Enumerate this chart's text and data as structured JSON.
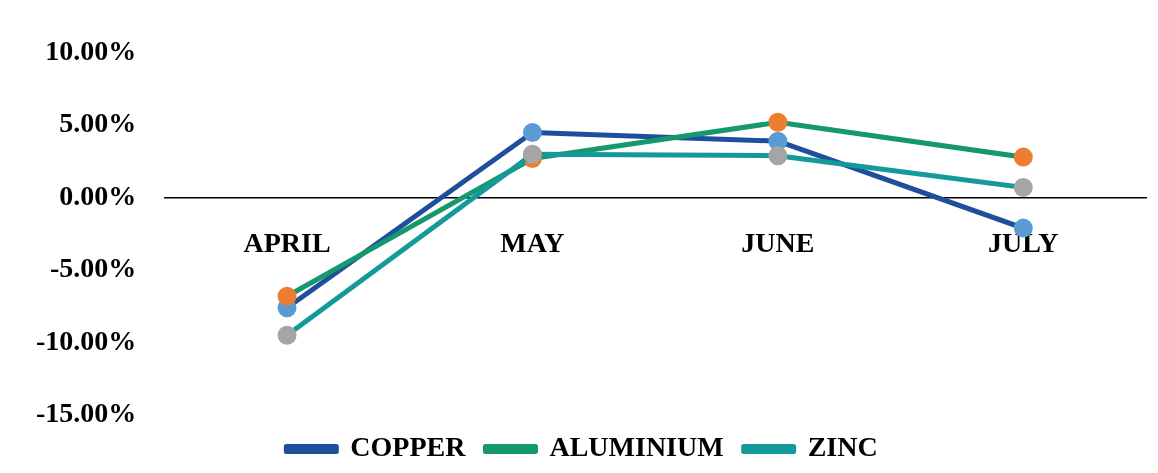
{
  "chart_data": {
    "type": "line",
    "categories": [
      "APRIL",
      "MAY",
      "JUNE",
      "JULY"
    ],
    "series": [
      {
        "name": "COPPER",
        "color": "#1f4e9c",
        "colors": [
          "#5b9bd5",
          "#5b9bd5",
          "#5b9bd5",
          "#5b9bd5"
        ],
        "values": [
          -7.6,
          4.5,
          3.9,
          -2.1
        ]
      },
      {
        "name": "ALUMINIUM",
        "color": "#16986e",
        "colors": [
          "#ed7d31",
          "#ed7d31",
          "#ed7d31",
          "#ed7d31"
        ],
        "values": [
          -6.8,
          2.7,
          5.2,
          2.8
        ]
      },
      {
        "name": "ZINC",
        "color": "#159a9c",
        "colors": [
          "#a5a5a5",
          "#a5a5a5",
          "#a5a5a5",
          "#a5a5a5"
        ],
        "values": [
          -9.5,
          3.0,
          2.9,
          0.7
        ]
      }
    ],
    "ylim": [
      -15,
      10
    ],
    "yticks": [
      {
        "value": -15,
        "label": "-15.00%"
      },
      {
        "value": -10,
        "label": "-10.00%"
      },
      {
        "value": -5,
        "label": "-5.00%"
      },
      {
        "value": 0,
        "label": "0.00%"
      },
      {
        "value": 5,
        "label": "5.00%"
      },
      {
        "value": 10,
        "label": "10.00%"
      }
    ],
    "grid": false,
    "legend": "bottom",
    "marker": "circle",
    "line_style": "solid"
  }
}
